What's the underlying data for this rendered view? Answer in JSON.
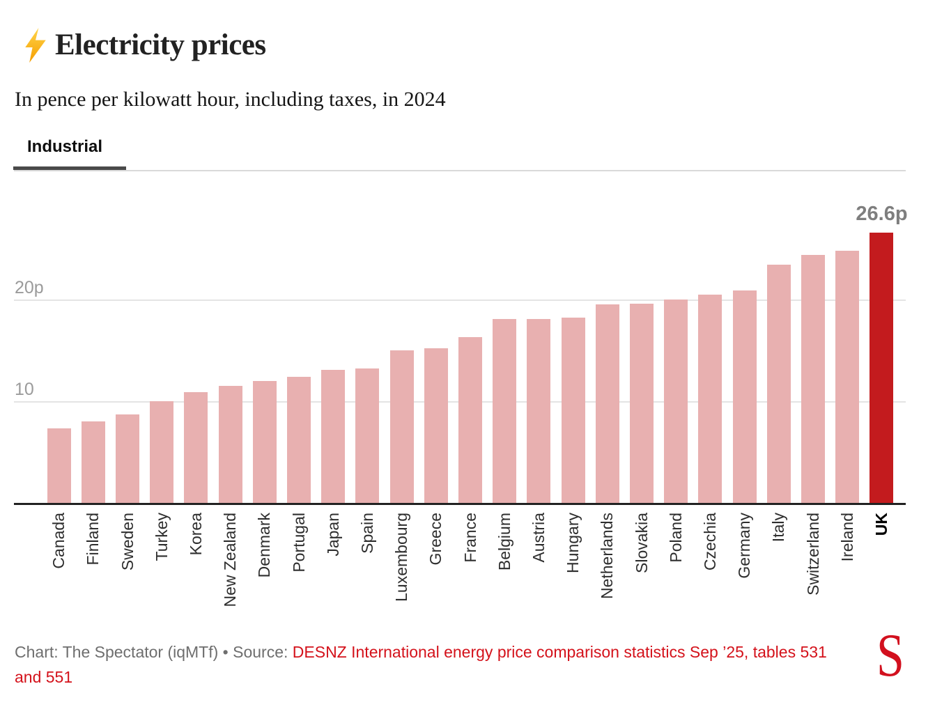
{
  "header": {
    "icon": "lightning-bolt",
    "title": "Electricity prices",
    "subtitle": "In pence per kilowatt hour, including taxes, in 2024"
  },
  "tabs": {
    "active_label": "Industrial"
  },
  "chart_data": {
    "type": "bar",
    "title": "Electricity prices",
    "subtitle": "In pence per kilowatt hour, including taxes, in 2024",
    "unit": "pence per kilowatt hour",
    "categories": [
      "Canada",
      "Finland",
      "Sweden",
      "Turkey",
      "Korea",
      "New Zealand",
      "Denmark",
      "Portugal",
      "Japan",
      "Spain",
      "Luxembourg",
      "Greece",
      "France",
      "Belgium",
      "Austria",
      "Hungary",
      "Netherlands",
      "Slovakia",
      "Poland",
      "Czechia",
      "Germany",
      "Italy",
      "Switzerland",
      "Ireland",
      "UK"
    ],
    "values": [
      7.3,
      8.0,
      8.7,
      10.0,
      10.9,
      11.5,
      12.0,
      12.4,
      13.1,
      13.2,
      15.0,
      15.2,
      16.3,
      18.1,
      18.1,
      18.2,
      19.5,
      19.6,
      20.0,
      20.5,
      20.9,
      23.4,
      24.4,
      24.8,
      26.6
    ],
    "highlight_category": "UK",
    "value_labels": [
      {
        "category": "UK",
        "text": "26.6p"
      }
    ],
    "yticks": [
      {
        "value": 10,
        "label": "10"
      },
      {
        "value": 20,
        "label": "20p"
      }
    ],
    "ylim": [
      0,
      27.5
    ],
    "grid": true,
    "legend": "none",
    "bar_color": "#e8b0b0",
    "highlight_color": "#c31b1e"
  },
  "footer": {
    "credit": "Chart: The Spectator (iqMTf) • Source: ",
    "source": "DESNZ International energy price comparison statistics Sep ’25, tables 531 and 551",
    "logo_letter": "S"
  },
  "colors": {
    "accent_red": "#d4121b",
    "axis": "#222222",
    "gridline": "#e4e4e4",
    "tick_label": "#9b9b9b"
  }
}
